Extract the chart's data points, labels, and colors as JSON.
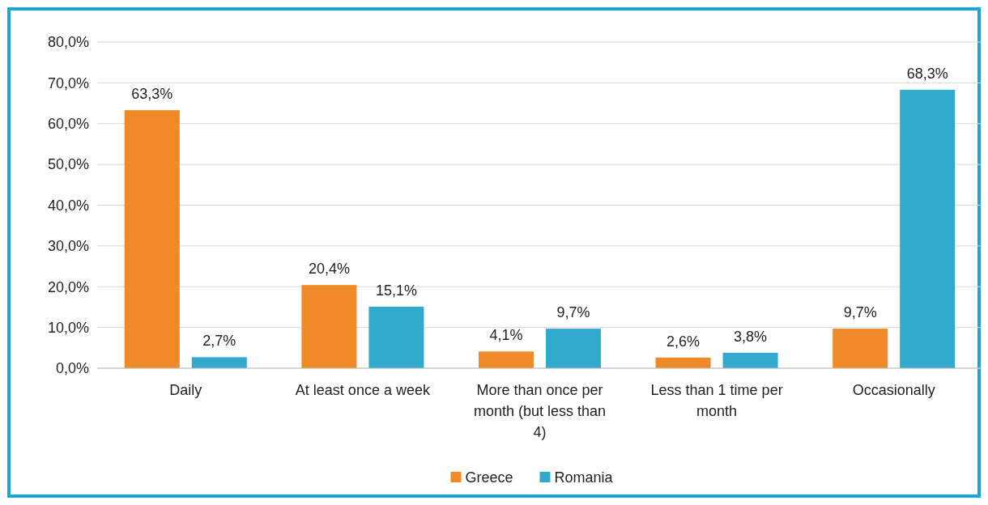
{
  "chart_data": {
    "type": "bar",
    "categories": [
      "Daily",
      "At least once a week",
      "More than once per month (but less than 4)",
      "Less than 1 time per month",
      "Occasionally"
    ],
    "series": [
      {
        "name": "Greece",
        "color": "#f08a28",
        "values": [
          63.3,
          20.4,
          4.1,
          2.6,
          9.7
        ],
        "value_labels": [
          "63,3%",
          "20,4%",
          "4,1%",
          "2,6%",
          "9,7%"
        ]
      },
      {
        "name": "Romania",
        "color": "#31a9cc",
        "values": [
          2.7,
          15.1,
          9.7,
          3.8,
          68.3
        ],
        "value_labels": [
          "2,7%",
          "15,1%",
          "9,7%",
          "3,8%",
          "68,3%"
        ]
      }
    ],
    "ylim": [
      0,
      80
    ],
    "yticks": [
      {
        "value": 0,
        "label": "0,0%"
      },
      {
        "value": 10,
        "label": "10,0%"
      },
      {
        "value": 20,
        "label": "20,0%"
      },
      {
        "value": 30,
        "label": "30,0%"
      },
      {
        "value": 40,
        "label": "40,0%"
      },
      {
        "value": 50,
        "label": "50,0%"
      },
      {
        "value": 60,
        "label": "60,0%"
      },
      {
        "value": 70,
        "label": "70,0%"
      },
      {
        "value": 80,
        "label": "80,0%"
      }
    ],
    "grid": "y",
    "legend": "bottom"
  }
}
